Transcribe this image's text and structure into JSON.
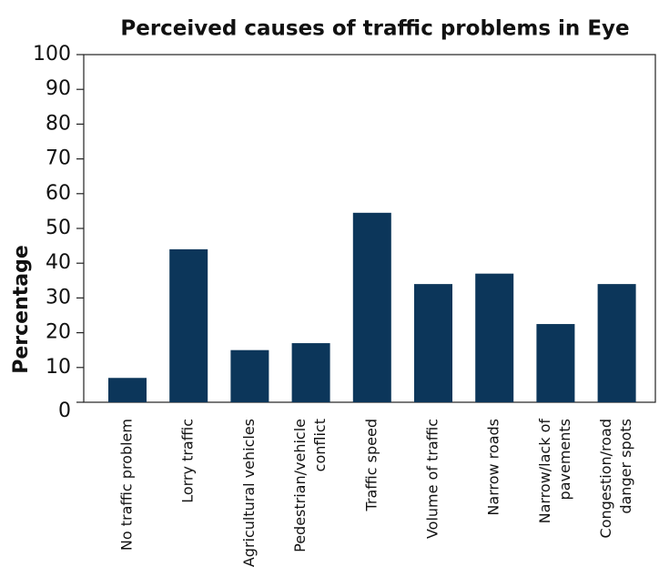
{
  "chart_data": {
    "type": "bar",
    "title": "Perceived causes of traffic problems in Eye",
    "y_label": "Percentage",
    "categories": [
      [
        "No traffic problem"
      ],
      [
        "Lorry traffic"
      ],
      [
        "Agricultural vehicles"
      ],
      [
        "Pedestrian/vehicle",
        "conflict"
      ],
      [
        "Traffic speed"
      ],
      [
        "Volume of traffic"
      ],
      [
        "Narrow roads"
      ],
      [
        "Narrow/lack of",
        "pavements"
      ],
      [
        "Congestion/road",
        "danger spots"
      ]
    ],
    "values": [
      7,
      44,
      15,
      17,
      54.5,
      34,
      37,
      22.5,
      34
    ],
    "color": "#0c365a",
    "ylim": [
      0,
      100
    ],
    "yticks": [
      0,
      10,
      20,
      30,
      40,
      50,
      60,
      70,
      80,
      90,
      100
    ],
    "grid": false
  }
}
